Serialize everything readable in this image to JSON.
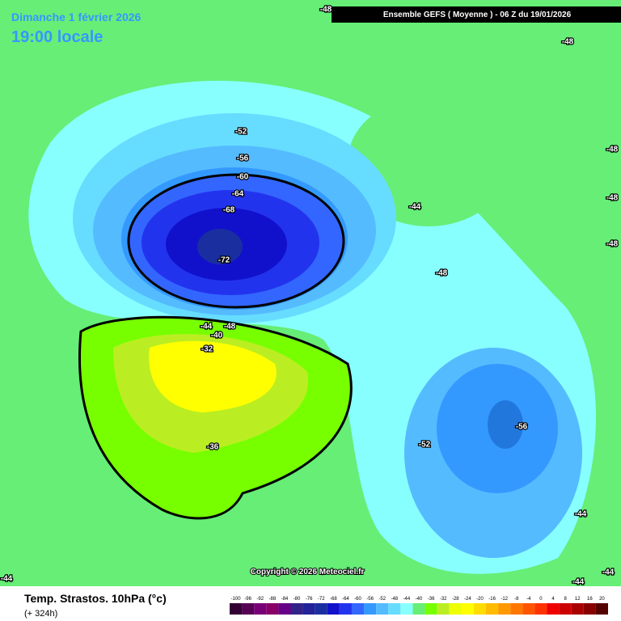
{
  "header": {
    "date": "Dimanche 1 février 2026",
    "time": "19:00 locale",
    "banner": "Ensemble GEFS  ( Moyenne )  -  06 Z du 19/01/2026"
  },
  "footer": {
    "parameter": "Temp. Strastos. 10hPa (°c)",
    "lead": "(+ 324h)",
    "copyright": "Copyright © 2026 Meteociel.fr"
  },
  "contour_labels": [
    -52,
    -56,
    -60,
    -64,
    -68,
    -72,
    -48,
    -48,
    -48,
    -44,
    -48,
    -48,
    -48,
    -44,
    -48,
    -40,
    -32,
    -36,
    -52,
    -56,
    -44,
    -44,
    -44,
    -44
  ],
  "colorbar": {
    "labels": [
      -100,
      -96,
      -92,
      -88,
      -84,
      -80,
      -76,
      -72,
      -68,
      -64,
      -60,
      -56,
      -52,
      -48,
      -44,
      -40,
      -36,
      -32,
      -28,
      -24,
      -20,
      -16,
      -12,
      -8,
      -4,
      0,
      4,
      8,
      12,
      16,
      20
    ],
    "colors": [
      "#330033",
      "#550055",
      "#770077",
      "#880066",
      "#660088",
      "#332288",
      "#222299",
      "#1a2ea0",
      "#1111cc",
      "#2233ee",
      "#3366ff",
      "#3399ff",
      "#55bbff",
      "#66ddff",
      "#88ffff",
      "#66ee77",
      "#77ff00",
      "#bbee22",
      "#eeff00",
      "#ffff00",
      "#ffdd00",
      "#ffbb00",
      "#ff9900",
      "#ff7700",
      "#ff5500",
      "#ff3300",
      "#ee0000",
      "#cc0000",
      "#aa0000",
      "#880000",
      "#550000"
    ]
  }
}
